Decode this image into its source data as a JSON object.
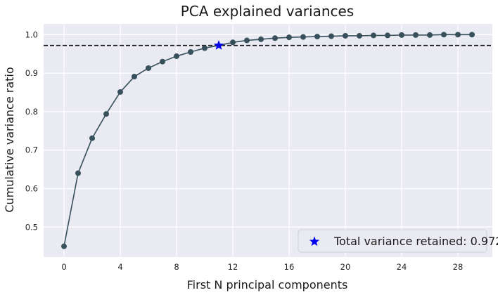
{
  "chart_data": {
    "type": "line",
    "title": "PCA explained variances",
    "xlabel": "First N principal components",
    "ylabel": "Cumulative variance ratio",
    "xlim": [
      -1.45,
      30.45
    ],
    "ylim": [
      0.422,
      1.028
    ],
    "xticks": [
      0,
      4,
      8,
      12,
      16,
      20,
      24,
      28
    ],
    "yticks": [
      0.5,
      0.6,
      0.7,
      0.8,
      0.9,
      1.0
    ],
    "ytick_labels": [
      "0.5",
      "0.6",
      "0.7",
      "0.8",
      "0.9",
      "1.0"
    ],
    "grid": true,
    "series": [
      {
        "x": [
          0,
          1,
          2,
          3,
          4,
          5,
          6,
          7,
          8,
          9,
          10,
          11,
          12,
          13,
          14,
          15,
          16,
          17,
          18,
          19,
          20,
          21,
          22,
          23,
          24,
          25,
          26,
          27,
          28,
          29
        ],
        "values": [
          0.45,
          0.64,
          0.731,
          0.794,
          0.851,
          0.891,
          0.913,
          0.93,
          0.944,
          0.955,
          0.965,
          0.972,
          0.98,
          0.985,
          0.988,
          0.991,
          0.993,
          0.994,
          0.995,
          0.996,
          0.997,
          0.997,
          0.998,
          0.998,
          0.999,
          0.999,
          0.999,
          1.0,
          1.0,
          1.0
        ],
        "color": "#37505c"
      }
    ],
    "threshold": {
      "value": 0.972,
      "style": "dashed",
      "color": "#111111"
    },
    "highlight": {
      "x": 11,
      "y": 0.972,
      "marker": "star",
      "color": "#0000ee"
    },
    "legend": {
      "label": "Total variance retained: 0.972",
      "placement": "lower right"
    },
    "colors": {
      "background": "#eaeaf2",
      "grid": "#ffffff"
    }
  }
}
